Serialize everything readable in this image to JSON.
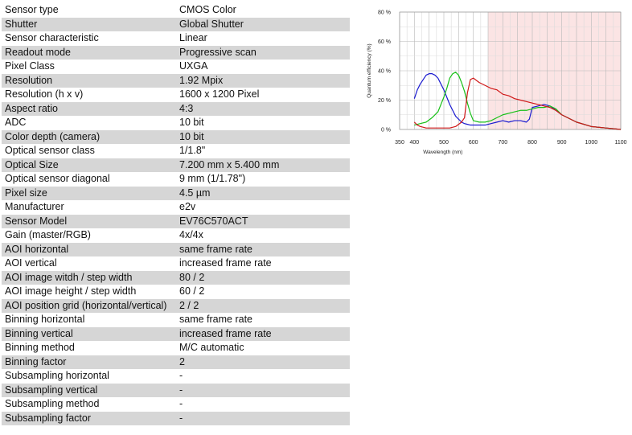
{
  "specs": [
    {
      "label": "Sensor type",
      "value": "CMOS Color"
    },
    {
      "label": "Shutter",
      "value": "Global Shutter"
    },
    {
      "label": "Sensor characteristic",
      "value": "Linear"
    },
    {
      "label": "Readout mode",
      "value": "Progressive scan"
    },
    {
      "label": "Pixel Class",
      "value": "UXGA"
    },
    {
      "label": "Resolution",
      "value": "1.92 Mpix"
    },
    {
      "label": "Resolution (h x v)",
      "value": "1600 x 1200 Pixel"
    },
    {
      "label": "Aspect ratio",
      "value": "4:3"
    },
    {
      "label": "ADC",
      "value": "10 bit"
    },
    {
      "label": "Color depth (camera)",
      "value": "10 bit"
    },
    {
      "label": "Optical sensor class",
      "value": "1/1.8\""
    },
    {
      "label": "Optical Size",
      "value": "7.200 mm x 5.400 mm"
    },
    {
      "label": "Optical sensor diagonal",
      "value": "9 mm (1/1.78\")"
    },
    {
      "label": "Pixel size",
      "value": "4.5 µm"
    },
    {
      "label": "Manufacturer",
      "value": "e2v"
    },
    {
      "label": "Sensor Model",
      "value": "EV76C570ACT"
    },
    {
      "label": "Gain (master/RGB)",
      "value": "4x/4x"
    },
    {
      "label": "AOI horizontal",
      "value": "same frame rate"
    },
    {
      "label": "AOI vertical",
      "value": "increased frame rate"
    },
    {
      "label": "AOI image witdh / step width",
      "value": "80 / 2"
    },
    {
      "label": "AOI image height / step width",
      "value": "60 / 2"
    },
    {
      "label": "AOI position grid (horizontal/vertical)",
      "value": "2 / 2"
    },
    {
      "label": "Binning horizontal",
      "value": "same frame rate"
    },
    {
      "label": "Binning vertical",
      "value": "increased frame rate"
    },
    {
      "label": "Binning method",
      "value": "M/C automatic"
    },
    {
      "label": "Binning factor",
      "value": "2"
    },
    {
      "label": "Subsampling horizontal",
      "value": "-"
    },
    {
      "label": "Subsampling vertical",
      "value": "-"
    },
    {
      "label": "Subsampling method",
      "value": "-"
    },
    {
      "label": "Subsampling factor",
      "value": "-"
    }
  ],
  "chart_data": {
    "type": "line",
    "title": "",
    "xlabel": "Wavelength (nm)",
    "ylabel": "Quantum efficiency (%)",
    "xlim": [
      350,
      1100
    ],
    "ylim": [
      0,
      80
    ],
    "xticks": [
      350,
      400,
      500,
      600,
      700,
      800,
      900,
      1000,
      1100
    ],
    "xtick_labels": [
      "350",
      "400",
      "500",
      "600",
      "700",
      "800",
      "900",
      "1000",
      "1100"
    ],
    "yticks": [
      0,
      20,
      40,
      60,
      80
    ],
    "ytick_labels": [
      "0 %",
      "20 %",
      "40 %",
      "60 %",
      "80 %"
    ],
    "grid": true,
    "highlight_region": {
      "x": [
        650,
        1100
      ],
      "color": "#fbe4e4"
    },
    "series": [
      {
        "color": "#1a1ad0",
        "x": [
          400,
          410,
          420,
          430,
          440,
          450,
          460,
          470,
          480,
          490,
          500,
          510,
          520,
          530,
          540,
          550,
          560,
          570,
          580,
          590,
          600,
          620,
          640,
          660,
          680,
          700,
          720,
          740,
          760,
          780,
          790,
          800,
          820,
          840,
          860,
          880,
          900,
          950,
          1000,
          1050,
          1100
        ],
        "y": [
          21,
          27,
          31,
          34,
          37,
          38,
          38,
          37,
          35,
          31,
          27,
          22,
          17,
          13,
          9,
          7,
          5,
          4,
          3.5,
          3,
          3,
          3,
          3,
          4,
          5,
          6,
          5,
          6,
          6,
          5,
          7,
          15,
          16,
          17,
          16,
          13,
          10,
          5,
          2,
          1,
          0
        ]
      },
      {
        "color": "#18c018",
        "x": [
          400,
          420,
          440,
          460,
          480,
          500,
          510,
          520,
          530,
          540,
          550,
          560,
          570,
          580,
          590,
          600,
          620,
          640,
          660,
          680,
          700,
          720,
          740,
          760,
          780,
          800,
          820,
          840,
          860,
          880,
          900,
          950,
          1000,
          1050,
          1100
        ],
        "y": [
          3,
          4,
          5,
          8,
          12,
          22,
          28,
          35,
          38,
          39,
          37,
          32,
          26,
          18,
          11,
          6,
          5,
          5,
          6,
          8,
          10,
          11,
          12,
          13,
          13,
          14,
          15,
          15,
          16,
          14,
          10,
          5,
          2,
          1,
          0
        ]
      },
      {
        "color": "#d01818",
        "x": [
          400,
          410,
          420,
          440,
          460,
          480,
          500,
          520,
          540,
          560,
          570,
          580,
          590,
          600,
          620,
          640,
          660,
          680,
          700,
          720,
          740,
          760,
          780,
          800,
          820,
          840,
          860,
          880,
          900,
          950,
          1000,
          1050,
          1100
        ],
        "y": [
          5,
          3,
          2,
          1,
          1,
          1,
          1,
          1,
          2,
          5,
          8,
          25,
          34,
          35,
          32,
          30,
          28,
          27,
          24,
          23,
          21,
          20,
          19,
          18,
          17,
          16,
          15,
          13,
          10,
          5,
          2,
          1,
          0
        ]
      }
    ]
  }
}
